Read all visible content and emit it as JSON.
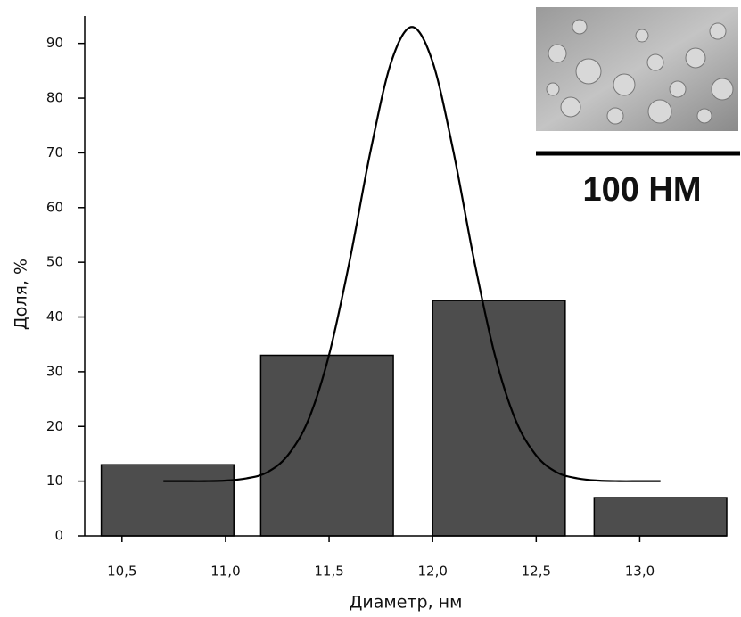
{
  "chart_data": {
    "type": "bar",
    "y_label": "Доля, %",
    "x_label": "Диаметр, нм",
    "xlim": [
      10.32,
      13.42
    ],
    "xticks": [
      {
        "value": 10.5,
        "label": "10,5"
      },
      {
        "value": 11.0,
        "label": "11,0"
      },
      {
        "value": 11.5,
        "label": "11,5"
      },
      {
        "value": 12.0,
        "label": "12,0"
      },
      {
        "value": 12.5,
        "label": "12,5"
      },
      {
        "value": 13.0,
        "label": "13,0"
      }
    ],
    "ylim": [
      0,
      95
    ],
    "yticks": [
      0,
      10,
      20,
      30,
      40,
      50,
      60,
      70,
      80,
      90
    ],
    "bar_width": 0.64,
    "series": [
      {
        "type": "bar",
        "color": "#4d4d4d",
        "x": [
          10.72,
          11.49,
          12.32,
          13.1
        ],
        "values": [
          13,
          33,
          43,
          7
        ]
      },
      {
        "type": "line",
        "color": "#000000",
        "x": [
          10.7,
          10.8,
          10.9,
          11.0,
          11.1,
          11.2,
          11.3,
          11.4,
          11.5,
          11.6,
          11.7,
          11.8,
          11.9,
          12.0,
          12.1,
          12.2,
          12.3,
          12.4,
          12.5,
          12.6,
          12.7,
          12.8,
          12.9,
          13.0,
          13.1
        ],
        "values": [
          10.0,
          10.0,
          10.0,
          10.1,
          10.5,
          11.6,
          14.7,
          21.2,
          33.1,
          50.4,
          70.3,
          86.6,
          93.0,
          86.6,
          70.3,
          50.4,
          33.1,
          21.2,
          14.7,
          11.6,
          10.5,
          10.1,
          10.0,
          10.0,
          10.0
        ]
      }
    ]
  },
  "inset": {
    "scale_label": "100 НМ"
  }
}
